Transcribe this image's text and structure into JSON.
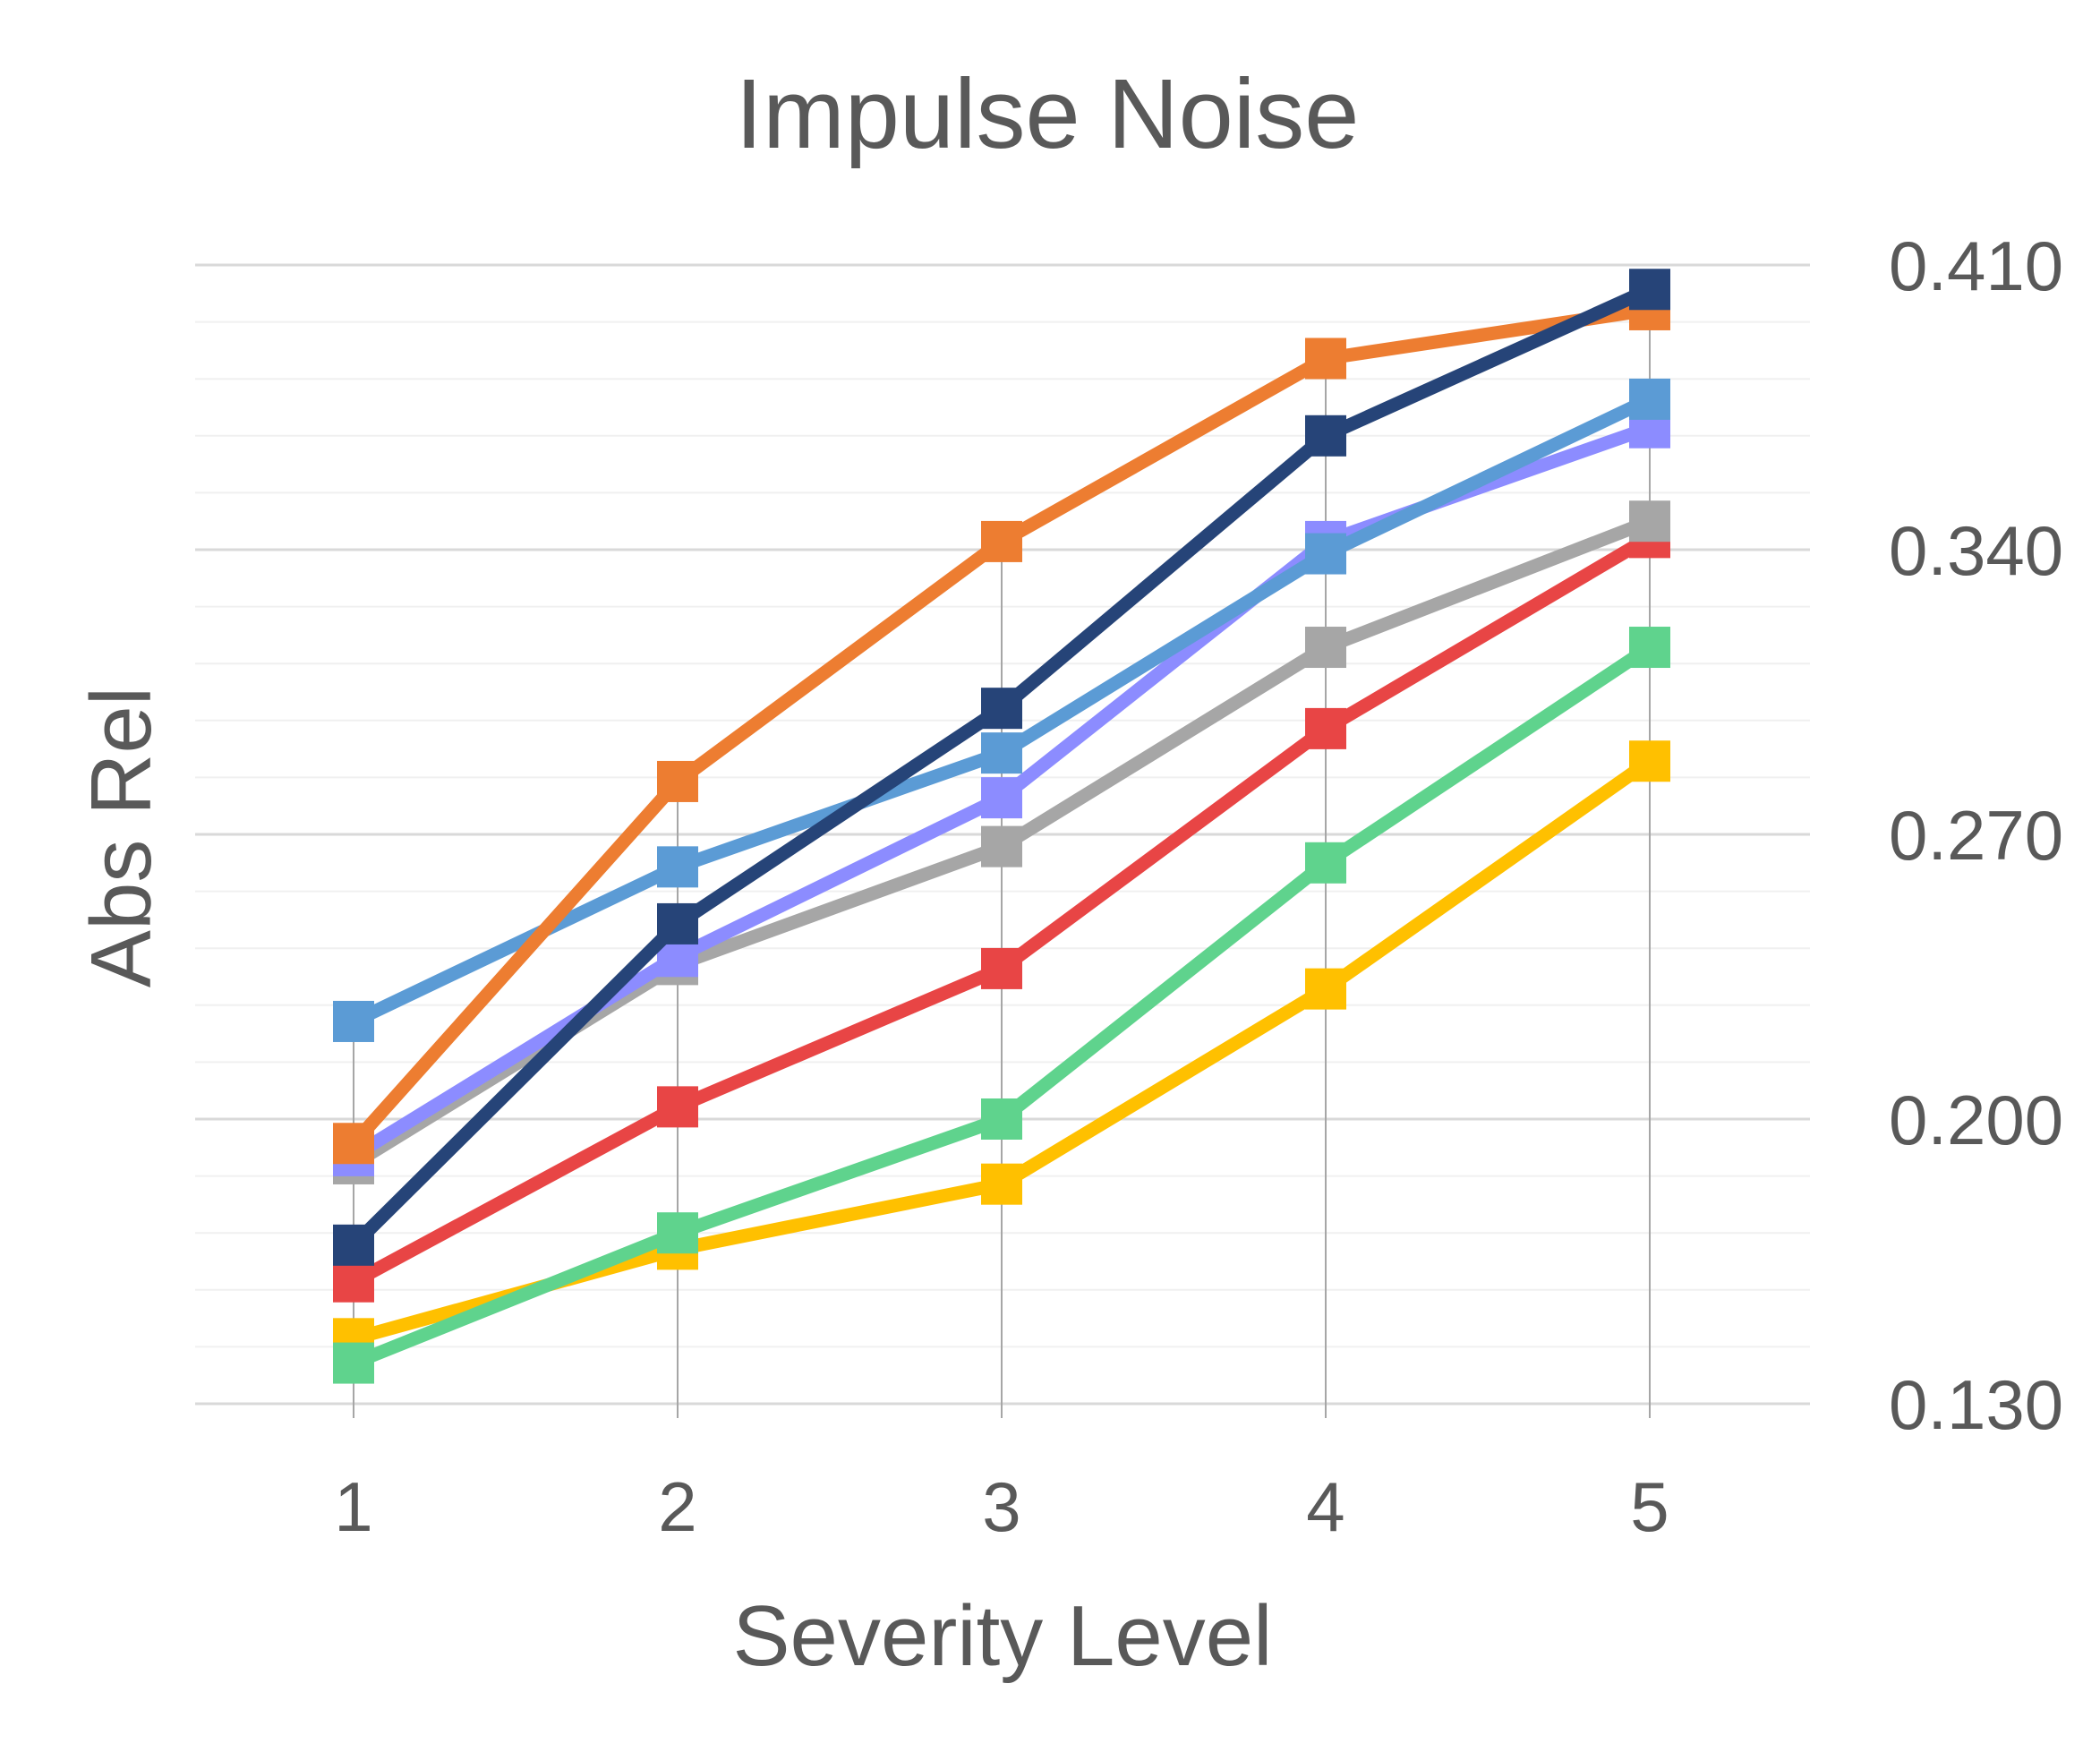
{
  "chart_data": {
    "type": "line",
    "title": "Impulse Noise",
    "xlabel": "Severity Level",
    "ylabel": "Abs Rel",
    "x": [
      "1",
      "2",
      "3",
      "4",
      "5"
    ],
    "ylim": [
      0.13,
      0.41
    ],
    "yticks": [
      "0.410",
      "0.340",
      "0.270",
      "0.200",
      "0.130"
    ],
    "ytick_values": [
      0.41,
      0.34,
      0.27,
      0.2,
      0.13
    ],
    "y_axis_side": "right",
    "minor_step": 0.014,
    "grid": true,
    "legend": "none",
    "series": [
      {
        "color": "#ffc000",
        "values": [
          0.146,
          0.168,
          0.184,
          0.232,
          0.288
        ]
      },
      {
        "color": "#5fd38d",
        "values": [
          0.14,
          0.172,
          0.2,
          0.263,
          0.316
        ]
      },
      {
        "color": "#e84545",
        "values": [
          0.16,
          0.203,
          0.237,
          0.296,
          0.343
        ]
      },
      {
        "color": "#a6a6a6",
        "values": [
          0.189,
          0.238,
          0.267,
          0.316,
          0.347
        ]
      },
      {
        "color": "#8c8cff",
        "values": [
          0.191,
          0.24,
          0.279,
          0.342,
          0.37
        ]
      },
      {
        "color": "#5b9bd5",
        "values": [
          0.224,
          0.262,
          0.29,
          0.339,
          0.377
        ]
      },
      {
        "color": "#ed7d31",
        "values": [
          0.194,
          0.283,
          0.342,
          0.387,
          0.399
        ]
      },
      {
        "color": "#264478",
        "values": [
          0.169,
          0.248,
          0.301,
          0.368,
          0.404
        ]
      }
    ]
  }
}
